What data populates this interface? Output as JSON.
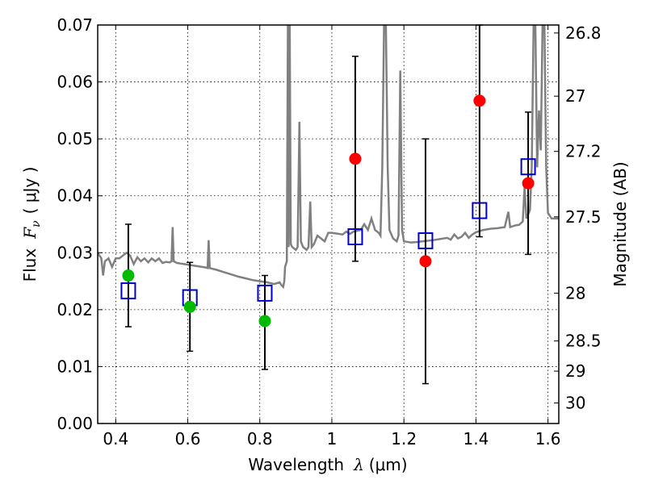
{
  "chart_data": {
    "type": "scatter",
    "xlabel": "Wavelength",
    "xlabel_symbol": "λ",
    "xlabel_unit": "(μm)",
    "ylabel": "Flux",
    "ylabel_symbol_main": "F",
    "ylabel_symbol_sub": "ν",
    "ylabel_unit": "( μJy )",
    "y2label": "Magnitude (AB)",
    "xlim": [
      0.35,
      1.63
    ],
    "ylim": [
      0.0,
      0.07
    ],
    "grid": true,
    "x_ticks": [
      0.4,
      0.6,
      0.8,
      1.0,
      1.2,
      1.4,
      1.6
    ],
    "x_tick_labels": [
      "0.4",
      "0.6",
      "0.8",
      "1",
      "1.2",
      "1.4",
      "1.6"
    ],
    "y_ticks": [
      0.0,
      0.01,
      0.02,
      0.03,
      0.04,
      0.05,
      0.06,
      0.07
    ],
    "y_tick_labels": [
      "0.00",
      "0.01",
      "0.02",
      "0.03",
      "0.04",
      "0.05",
      "0.06",
      "0.07"
    ],
    "y2_ticks": [
      {
        "label": "26.8",
        "flux": 0.0686
      },
      {
        "label": "27",
        "flux": 0.0575
      },
      {
        "label": "27.2",
        "flux": 0.0478
      },
      {
        "label": "27.5",
        "flux": 0.0363
      },
      {
        "label": "28",
        "flux": 0.0229
      },
      {
        "label": "28.5",
        "flux": 0.0145
      },
      {
        "label": "29",
        "flux": 0.0092
      },
      {
        "label": "30",
        "flux": 0.0036
      }
    ],
    "colors": {
      "template": "#808080",
      "red": "#ff0000",
      "green": "#00bb00",
      "squares": "#0000cc",
      "errorbar": "#000000"
    },
    "observed": [
      {
        "x": 0.435,
        "y": 0.026,
        "err_low": 0.017,
        "err_high": 0.035,
        "color": "green"
      },
      {
        "x": 0.606,
        "y": 0.0205,
        "err_low": 0.0127,
        "err_high": 0.0283,
        "color": "green"
      },
      {
        "x": 0.814,
        "y": 0.018,
        "err_low": 0.0095,
        "err_high": 0.026,
        "color": "green"
      },
      {
        "x": 1.065,
        "y": 0.0465,
        "err_low": 0.0285,
        "err_high": 0.0645,
        "color": "red"
      },
      {
        "x": 1.26,
        "y": 0.0285,
        "err_low": 0.007,
        "err_high": 0.05,
        "color": "red"
      },
      {
        "x": 1.41,
        "y": 0.0567,
        "err_low": 0.0328,
        "err_high": 0.07,
        "color": "red"
      },
      {
        "x": 1.545,
        "y": 0.0422,
        "err_low": 0.0297,
        "err_high": 0.0547,
        "color": "red"
      }
    ],
    "model_squares": [
      {
        "x": 0.435,
        "y": 0.0233
      },
      {
        "x": 0.606,
        "y": 0.0221
      },
      {
        "x": 0.814,
        "y": 0.0229
      },
      {
        "x": 1.065,
        "y": 0.0328
      },
      {
        "x": 1.26,
        "y": 0.0321
      },
      {
        "x": 1.41,
        "y": 0.0374
      },
      {
        "x": 1.545,
        "y": 0.0451
      }
    ],
    "template_spectrum": [
      [
        0.35,
        0.03
      ],
      [
        0.36,
        0.029
      ],
      [
        0.365,
        0.026
      ],
      [
        0.37,
        0.0285
      ],
      [
        0.38,
        0.029
      ],
      [
        0.39,
        0.0275
      ],
      [
        0.4,
        0.029
      ],
      [
        0.41,
        0.029
      ],
      [
        0.42,
        0.0295
      ],
      [
        0.43,
        0.03
      ],
      [
        0.44,
        0.0295
      ],
      [
        0.45,
        0.028
      ],
      [
        0.46,
        0.0292
      ],
      [
        0.47,
        0.0285
      ],
      [
        0.48,
        0.029
      ],
      [
        0.49,
        0.0283
      ],
      [
        0.5,
        0.029
      ],
      [
        0.51,
        0.0285
      ],
      [
        0.52,
        0.029
      ],
      [
        0.53,
        0.0282
      ],
      [
        0.54,
        0.0284
      ],
      [
        0.55,
        0.0283
      ],
      [
        0.555,
        0.0285
      ],
      [
        0.558,
        0.0345
      ],
      [
        0.561,
        0.0285
      ],
      [
        0.57,
        0.0282
      ],
      [
        0.58,
        0.0281
      ],
      [
        0.59,
        0.028
      ],
      [
        0.6,
        0.0279
      ],
      [
        0.62,
        0.0277
      ],
      [
        0.64,
        0.0275
      ],
      [
        0.65,
        0.0274
      ],
      [
        0.655,
        0.0273
      ],
      [
        0.658,
        0.0322
      ],
      [
        0.661,
        0.0273
      ],
      [
        0.68,
        0.027
      ],
      [
        0.7,
        0.0266
      ],
      [
        0.72,
        0.0262
      ],
      [
        0.74,
        0.0258
      ],
      [
        0.76,
        0.0255
      ],
      [
        0.78,
        0.0252
      ],
      [
        0.8,
        0.025
      ],
      [
        0.82,
        0.0248
      ],
      [
        0.84,
        0.0245
      ],
      [
        0.855,
        0.0248
      ],
      [
        0.86,
        0.0243
      ],
      [
        0.865,
        0.024
      ],
      [
        0.868,
        0.025
      ],
      [
        0.87,
        0.0275
      ],
      [
        0.875,
        0.0285
      ],
      [
        0.878,
        0.07
      ],
      [
        0.88,
        0.031
      ],
      [
        0.883,
        0.07
      ],
      [
        0.886,
        0.0315
      ],
      [
        0.89,
        0.031
      ],
      [
        0.9,
        0.0305
      ],
      [
        0.905,
        0.031
      ],
      [
        0.91,
        0.053
      ],
      [
        0.914,
        0.032
      ],
      [
        0.92,
        0.031
      ],
      [
        0.93,
        0.0305
      ],
      [
        0.935,
        0.031
      ],
      [
        0.94,
        0.039
      ],
      [
        0.944,
        0.031
      ],
      [
        0.95,
        0.0315
      ],
      [
        0.96,
        0.033
      ],
      [
        0.97,
        0.0325
      ],
      [
        0.98,
        0.032
      ],
      [
        0.99,
        0.0335
      ],
      [
        1.0,
        0.0335
      ],
      [
        1.02,
        0.0333
      ],
      [
        1.03,
        0.0332
      ],
      [
        1.04,
        0.0337
      ],
      [
        1.05,
        0.0333
      ],
      [
        1.06,
        0.0337
      ],
      [
        1.08,
        0.034
      ],
      [
        1.09,
        0.035
      ],
      [
        1.1,
        0.034
      ],
      [
        1.11,
        0.036
      ],
      [
        1.12,
        0.034
      ],
      [
        1.13,
        0.0335
      ],
      [
        1.135,
        0.033
      ],
      [
        1.14,
        0.045
      ],
      [
        1.145,
        0.07
      ],
      [
        1.15,
        0.07
      ],
      [
        1.155,
        0.045
      ],
      [
        1.16,
        0.034
      ],
      [
        1.17,
        0.0325
      ],
      [
        1.18,
        0.032
      ],
      [
        1.185,
        0.033
      ],
      [
        1.19,
        0.062
      ],
      [
        1.195,
        0.034
      ],
      [
        1.2,
        0.032
      ],
      [
        1.22,
        0.0318
      ],
      [
        1.24,
        0.0319
      ],
      [
        1.25,
        0.032
      ],
      [
        1.28,
        0.0322
      ],
      [
        1.3,
        0.0324
      ],
      [
        1.32,
        0.0326
      ],
      [
        1.33,
        0.0323
      ],
      [
        1.34,
        0.0332
      ],
      [
        1.35,
        0.0325
      ],
      [
        1.36,
        0.0328
      ],
      [
        1.37,
        0.0335
      ],
      [
        1.38,
        0.0326
      ],
      [
        1.39,
        0.0332
      ],
      [
        1.4,
        0.0336
      ],
      [
        1.42,
        0.034
      ],
      [
        1.44,
        0.0342
      ],
      [
        1.46,
        0.0343
      ],
      [
        1.48,
        0.0345
      ],
      [
        1.49,
        0.0372
      ],
      [
        1.495,
        0.0345
      ],
      [
        1.5,
        0.0346
      ],
      [
        1.51,
        0.0348
      ],
      [
        1.52,
        0.0349
      ],
      [
        1.53,
        0.0355
      ],
      [
        1.535,
        0.0415
      ],
      [
        1.54,
        0.036
      ],
      [
        1.55,
        0.0375
      ],
      [
        1.555,
        0.045
      ],
      [
        1.56,
        0.07
      ],
      [
        1.565,
        0.07
      ],
      [
        1.57,
        0.045
      ],
      [
        1.575,
        0.055
      ],
      [
        1.58,
        0.048
      ],
      [
        1.585,
        0.07
      ],
      [
        1.59,
        0.07
      ],
      [
        1.595,
        0.045
      ],
      [
        1.6,
        0.037
      ],
      [
        1.61,
        0.036
      ],
      [
        1.62,
        0.036
      ],
      [
        1.63,
        0.036
      ]
    ]
  }
}
